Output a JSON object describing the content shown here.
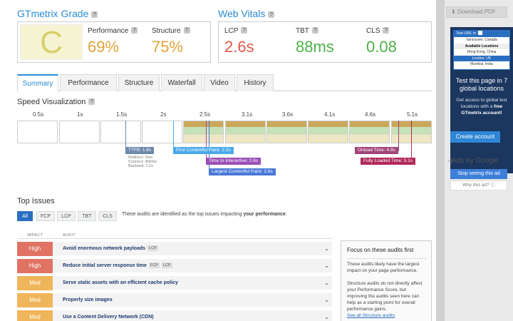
{
  "grade": {
    "title": "GTmetrix Grade",
    "letter": "C",
    "performance_label": "Performance",
    "performance_value": "69%",
    "structure_label": "Structure",
    "structure_value": "75%"
  },
  "vitals": {
    "title": "Web Vitals",
    "items": [
      {
        "label": "LCP",
        "value": "2.6s"
      },
      {
        "label": "TBT",
        "value": "88ms"
      },
      {
        "label": "CLS",
        "value": "0.08"
      }
    ]
  },
  "tabs": [
    "Summary",
    "Performance",
    "Structure",
    "Waterfall",
    "Video",
    "History"
  ],
  "speed": {
    "title": "Speed Visualization",
    "ticks": [
      "0.5s",
      "1s",
      "1.5s",
      "2s",
      "2.5s",
      "3.1s",
      "3.6s",
      "4.1s",
      "4.6s",
      "5.1s"
    ],
    "ttfb": "TTFB: 1.6s",
    "ttfb_details": [
      "Redirect: 0ms",
      "Connect: 466ms",
      "Backend: 1.1s"
    ],
    "markers": [
      {
        "label": "First Contentful Paint: 2.2s"
      },
      {
        "label": "Time to Interactive: 2.6s"
      },
      {
        "label": "Largest Contentful Paint: 2.6s"
      },
      {
        "label": "Onload Time: 4.9s"
      },
      {
        "label": "Fully Loaded Time: 5.1s"
      }
    ]
  },
  "issues": {
    "title": "Top Issues",
    "filters": [
      "All",
      "FCP",
      "LCP",
      "TBT",
      "CLS"
    ],
    "note_prefix": "These audits are identified as the top issues impacting ",
    "note_bold": "your performance",
    "note_suffix": ".",
    "col_impact": "IMPACT",
    "col_audit": "AUDIT",
    "rows": [
      {
        "impact": "High",
        "audit": "Avoid enormous network payloads",
        "tags": [
          "LCP"
        ]
      },
      {
        "impact": "High",
        "audit": "Reduce initial server response time",
        "tags": [
          "FCP",
          "LCP"
        ]
      },
      {
        "impact": "Med",
        "audit": "Serve static assets with an efficient cache policy",
        "tags": []
      },
      {
        "impact": "Med",
        "audit": "Properly size images",
        "tags": []
      },
      {
        "impact": "Med",
        "audit": "Use a Content Delivery Network (CDN)",
        "tags": []
      }
    ]
  },
  "focus": {
    "title": "Focus on these audits first",
    "p1": "These audits likely have the largest impact on your page performance.",
    "p2": "Structure audits do not directly affect your Performance Score, but improving the audits seen here can help as a starting point for overall performance gains.",
    "link": "See all Structure audits"
  },
  "sidebar": {
    "download": "Download PDF",
    "mini_header": "Test URL in",
    "mini_rows": [
      "Vancouver, Canada",
      "Available Locations",
      "Hong Kong, China",
      "London, UK",
      "Mumbai, India"
    ],
    "promo_title": "Test this page in 7 global locations",
    "promo_text_prefix": "Get access to global test locations with a ",
    "promo_text_bold": "free GTmetrix account!",
    "create_account": "Create account",
    "ads_by": "Ads by Google",
    "stop_seeing": "Stop seeing this ad",
    "why_ad": "Why this ad?"
  },
  "colors": {
    "accent": "#2a8bd4",
    "grade_c": "#d8cf6b",
    "perf": "#e3a33a",
    "lcp": "#e0584a",
    "good": "#4fb04a",
    "high": "#e07363",
    "med": "#efb55a",
    "fcp": "#4aa9e8",
    "tti": "#9b4fb8",
    "lcp_marker": "#4a78d8",
    "onload": "#a0457a",
    "fully": "#b0295a",
    "ttfb": "#6c88ad"
  }
}
